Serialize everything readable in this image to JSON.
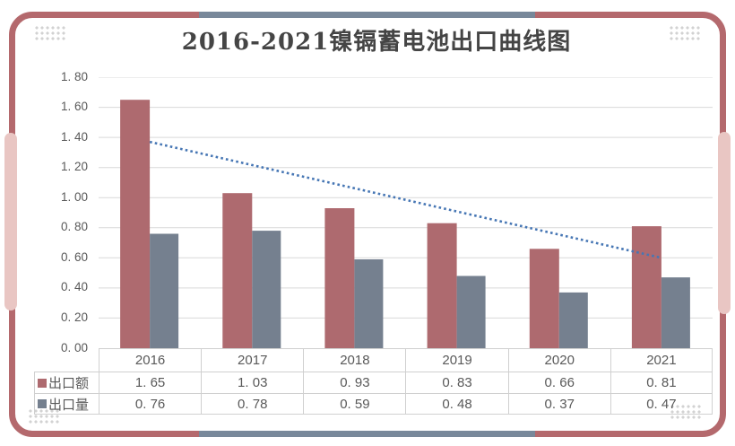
{
  "title": "2016-2021镍镉蓄电池出口曲线图",
  "colors": {
    "export_value_series": "#ae6a6f",
    "export_volume_series": "#75808f",
    "trendline": "#4676b4",
    "frame": "#b4696d",
    "frame_accent": "#78889a",
    "frame_pill": "#e9c6c3",
    "gridline": "#d9d9d9",
    "table_border": "#d0d0d0",
    "text": "#595959"
  },
  "chart_data": {
    "type": "bar",
    "title": "2016-2021镍镉蓄电池出口曲线图",
    "categories": [
      "2016",
      "2017",
      "2018",
      "2019",
      "2020",
      "2021"
    ],
    "series": [
      {
        "name": "出口额",
        "values": [
          1.65,
          1.03,
          0.93,
          0.83,
          0.66,
          0.81
        ],
        "color": "#ae6a6f"
      },
      {
        "name": "出口量",
        "values": [
          0.76,
          0.78,
          0.59,
          0.48,
          0.37,
          0.47
        ],
        "color": "#75808f"
      }
    ],
    "trendline": {
      "on_series": "出口额",
      "type": "linear",
      "start_value": 1.37,
      "end_value": 0.6,
      "style": "dotted",
      "color": "#4676b4"
    },
    "ylim": [
      0,
      1.8
    ],
    "ytick_step": 0.2,
    "ytick_labels": [
      "0. 00",
      "0. 20",
      "0. 40",
      "0. 60",
      "0. 80",
      "1. 00",
      "1. 20",
      "1. 40",
      "1. 60",
      "1. 80"
    ],
    "grid": true,
    "legend_position": "data-table-left"
  },
  "table": {
    "years": [
      "2016",
      "2017",
      "2018",
      "2019",
      "2020",
      "2021"
    ],
    "rows": [
      {
        "label": "出口额",
        "marker_color": "#ae6a6f",
        "values": [
          "1. 65",
          "1. 03",
          "0. 93",
          "0. 83",
          "0. 66",
          "0. 81"
        ]
      },
      {
        "label": "出口量",
        "marker_color": "#75808f",
        "values": [
          "0. 76",
          "0. 78",
          "0. 59",
          "0. 48",
          "0. 37",
          "0. 47"
        ]
      }
    ]
  }
}
